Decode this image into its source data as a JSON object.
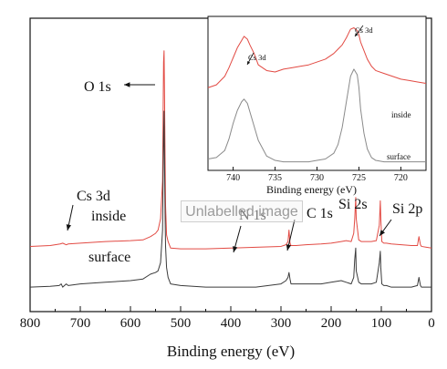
{
  "watermark_text": "Unlabelled image",
  "chart_data": [
    {
      "type": "line",
      "xlabel": "Binding energy (eV)",
      "xlim": [
        800,
        0
      ],
      "x_ticks": [
        800,
        700,
        600,
        500,
        400,
        300,
        200,
        100,
        0
      ],
      "series": [
        {
          "name": "inside",
          "color": "#e24a43",
          "x": [
            800,
            760,
            740,
            735,
            728,
            724,
            700,
            650,
            600,
            575,
            560,
            550,
            545,
            540,
            536,
            534,
            533,
            532,
            531,
            530,
            528,
            525,
            520,
            500,
            450,
            400,
            350,
            300,
            290,
            286,
            284,
            282,
            280,
            270,
            250,
            220,
            200,
            180,
            170,
            160,
            155,
            153,
            151,
            150,
            145,
            140,
            120,
            110,
            104,
            102,
            101,
            99,
            95,
            90,
            80,
            60,
            40,
            28,
            25,
            22,
            20,
            10,
            0
          ],
          "y": [
            0.05,
            0.055,
            0.065,
            0.07,
            0.06,
            0.065,
            0.07,
            0.08,
            0.085,
            0.09,
            0.11,
            0.13,
            0.15,
            0.22,
            0.45,
            1.18,
            1.25,
            0.95,
            0.6,
            0.3,
            0.12,
            0.08,
            0.04,
            0.035,
            0.035,
            0.04,
            0.045,
            0.05,
            0.06,
            0.08,
            0.15,
            0.07,
            0.055,
            0.055,
            0.06,
            0.065,
            0.07,
            0.08,
            0.085,
            0.08,
            0.13,
            0.22,
            0.35,
            0.22,
            0.09,
            0.08,
            0.08,
            0.085,
            0.18,
            0.33,
            0.22,
            0.08,
            0.07,
            0.07,
            0.065,
            0.06,
            0.055,
            0.055,
            0.11,
            0.06,
            0.05,
            0.045,
            0.04
          ]
        },
        {
          "name": "surface",
          "color": "#3b3b3b",
          "x": [
            800,
            760,
            742,
            738,
            735,
            728,
            724,
            700,
            650,
            600,
            575,
            560,
            550,
            545,
            540,
            536,
            534,
            533,
            532,
            531,
            530,
            528,
            525,
            520,
            500,
            450,
            400,
            350,
            300,
            290,
            286,
            284,
            282,
            280,
            270,
            250,
            220,
            200,
            180,
            170,
            160,
            155,
            153,
            151,
            150,
            145,
            140,
            120,
            110,
            104,
            102,
            101,
            99,
            95,
            90,
            80,
            60,
            40,
            28,
            25,
            22,
            20,
            10,
            0
          ],
          "y": [
            -0.2,
            -0.195,
            -0.19,
            -0.18,
            -0.2,
            -0.18,
            -0.19,
            -0.18,
            -0.17,
            -0.16,
            -0.15,
            -0.12,
            -0.11,
            -0.1,
            -0.05,
            0.15,
            0.72,
            0.88,
            0.55,
            0.25,
            0.05,
            -0.08,
            -0.14,
            -0.18,
            -0.19,
            -0.2,
            -0.2,
            -0.2,
            -0.18,
            -0.16,
            -0.14,
            -0.11,
            -0.15,
            -0.18,
            -0.18,
            -0.18,
            -0.18,
            -0.17,
            -0.16,
            -0.17,
            -0.18,
            -0.14,
            -0.03,
            0.04,
            -0.1,
            -0.17,
            -0.18,
            -0.18,
            -0.17,
            -0.05,
            0.02,
            -0.08,
            -0.18,
            -0.19,
            -0.19,
            -0.2,
            -0.2,
            -0.2,
            -0.19,
            -0.14,
            -0.19,
            -0.2,
            -0.2,
            -0.2
          ]
        }
      ],
      "annotations": [
        {
          "text": "O 1s"
        },
        {
          "text": "Cs 3d"
        },
        {
          "text": "inside"
        },
        {
          "text": "surface"
        },
        {
          "text": "N 1s"
        },
        {
          "text": "C 1s"
        },
        {
          "text": "Si 2s"
        },
        {
          "text": "Si 2p"
        }
      ]
    },
    {
      "type": "line",
      "xlabel": "Binding energy (eV)",
      "xlim": [
        743,
        717
      ],
      "x_ticks": [
        740,
        735,
        730,
        725,
        720
      ],
      "series": [
        {
          "name": "inside",
          "color": "#e24a43",
          "x": [
            743,
            742,
            741,
            740.5,
            740,
            739.5,
            739,
            738.7,
            738.3,
            738,
            737.5,
            737,
            736,
            735,
            734,
            733,
            732,
            731,
            730,
            729,
            728,
            727.5,
            727,
            726.5,
            726,
            725.6,
            725.2,
            725,
            724.8,
            724.4,
            724,
            723.5,
            723,
            722,
            721,
            720,
            719,
            718,
            717
          ],
          "y": [
            0.58,
            0.6,
            0.66,
            0.72,
            0.79,
            0.86,
            0.91,
            0.94,
            0.92,
            0.88,
            0.82,
            0.74,
            0.7,
            0.69,
            0.71,
            0.72,
            0.73,
            0.74,
            0.76,
            0.78,
            0.82,
            0.85,
            0.88,
            0.93,
            0.99,
            1.0,
            0.98,
            0.95,
            0.9,
            0.84,
            0.78,
            0.73,
            0.7,
            0.68,
            0.66,
            0.64,
            0.63,
            0.62,
            0.61
          ]
        },
        {
          "name": "surface",
          "color": "#8a8a8a",
          "x": [
            743,
            742,
            741,
            740.5,
            740,
            739.5,
            739,
            738.7,
            738.3,
            738,
            737.5,
            737,
            736,
            735,
            734,
            733,
            732,
            731,
            730,
            729,
            728,
            727.5,
            727,
            726.5,
            726,
            725.6,
            725.2,
            725,
            724.8,
            724.4,
            724,
            723.5,
            723,
            722,
            721,
            720,
            719,
            718,
            717
          ],
          "y": [
            0.08,
            0.09,
            0.14,
            0.22,
            0.33,
            0.42,
            0.48,
            0.5,
            0.47,
            0.41,
            0.31,
            0.21,
            0.1,
            0.07,
            0.06,
            0.06,
            0.06,
            0.06,
            0.07,
            0.08,
            0.12,
            0.18,
            0.3,
            0.48,
            0.66,
            0.71,
            0.67,
            0.58,
            0.43,
            0.26,
            0.15,
            0.09,
            0.07,
            0.06,
            0.06,
            0.06,
            0.06,
            0.06,
            0.06
          ]
        }
      ],
      "annotations": [
        {
          "text": "Cs 3d"
        },
        {
          "text": "Cs 3d"
        },
        {
          "text": "inside"
        },
        {
          "text": "surface"
        }
      ]
    }
  ]
}
